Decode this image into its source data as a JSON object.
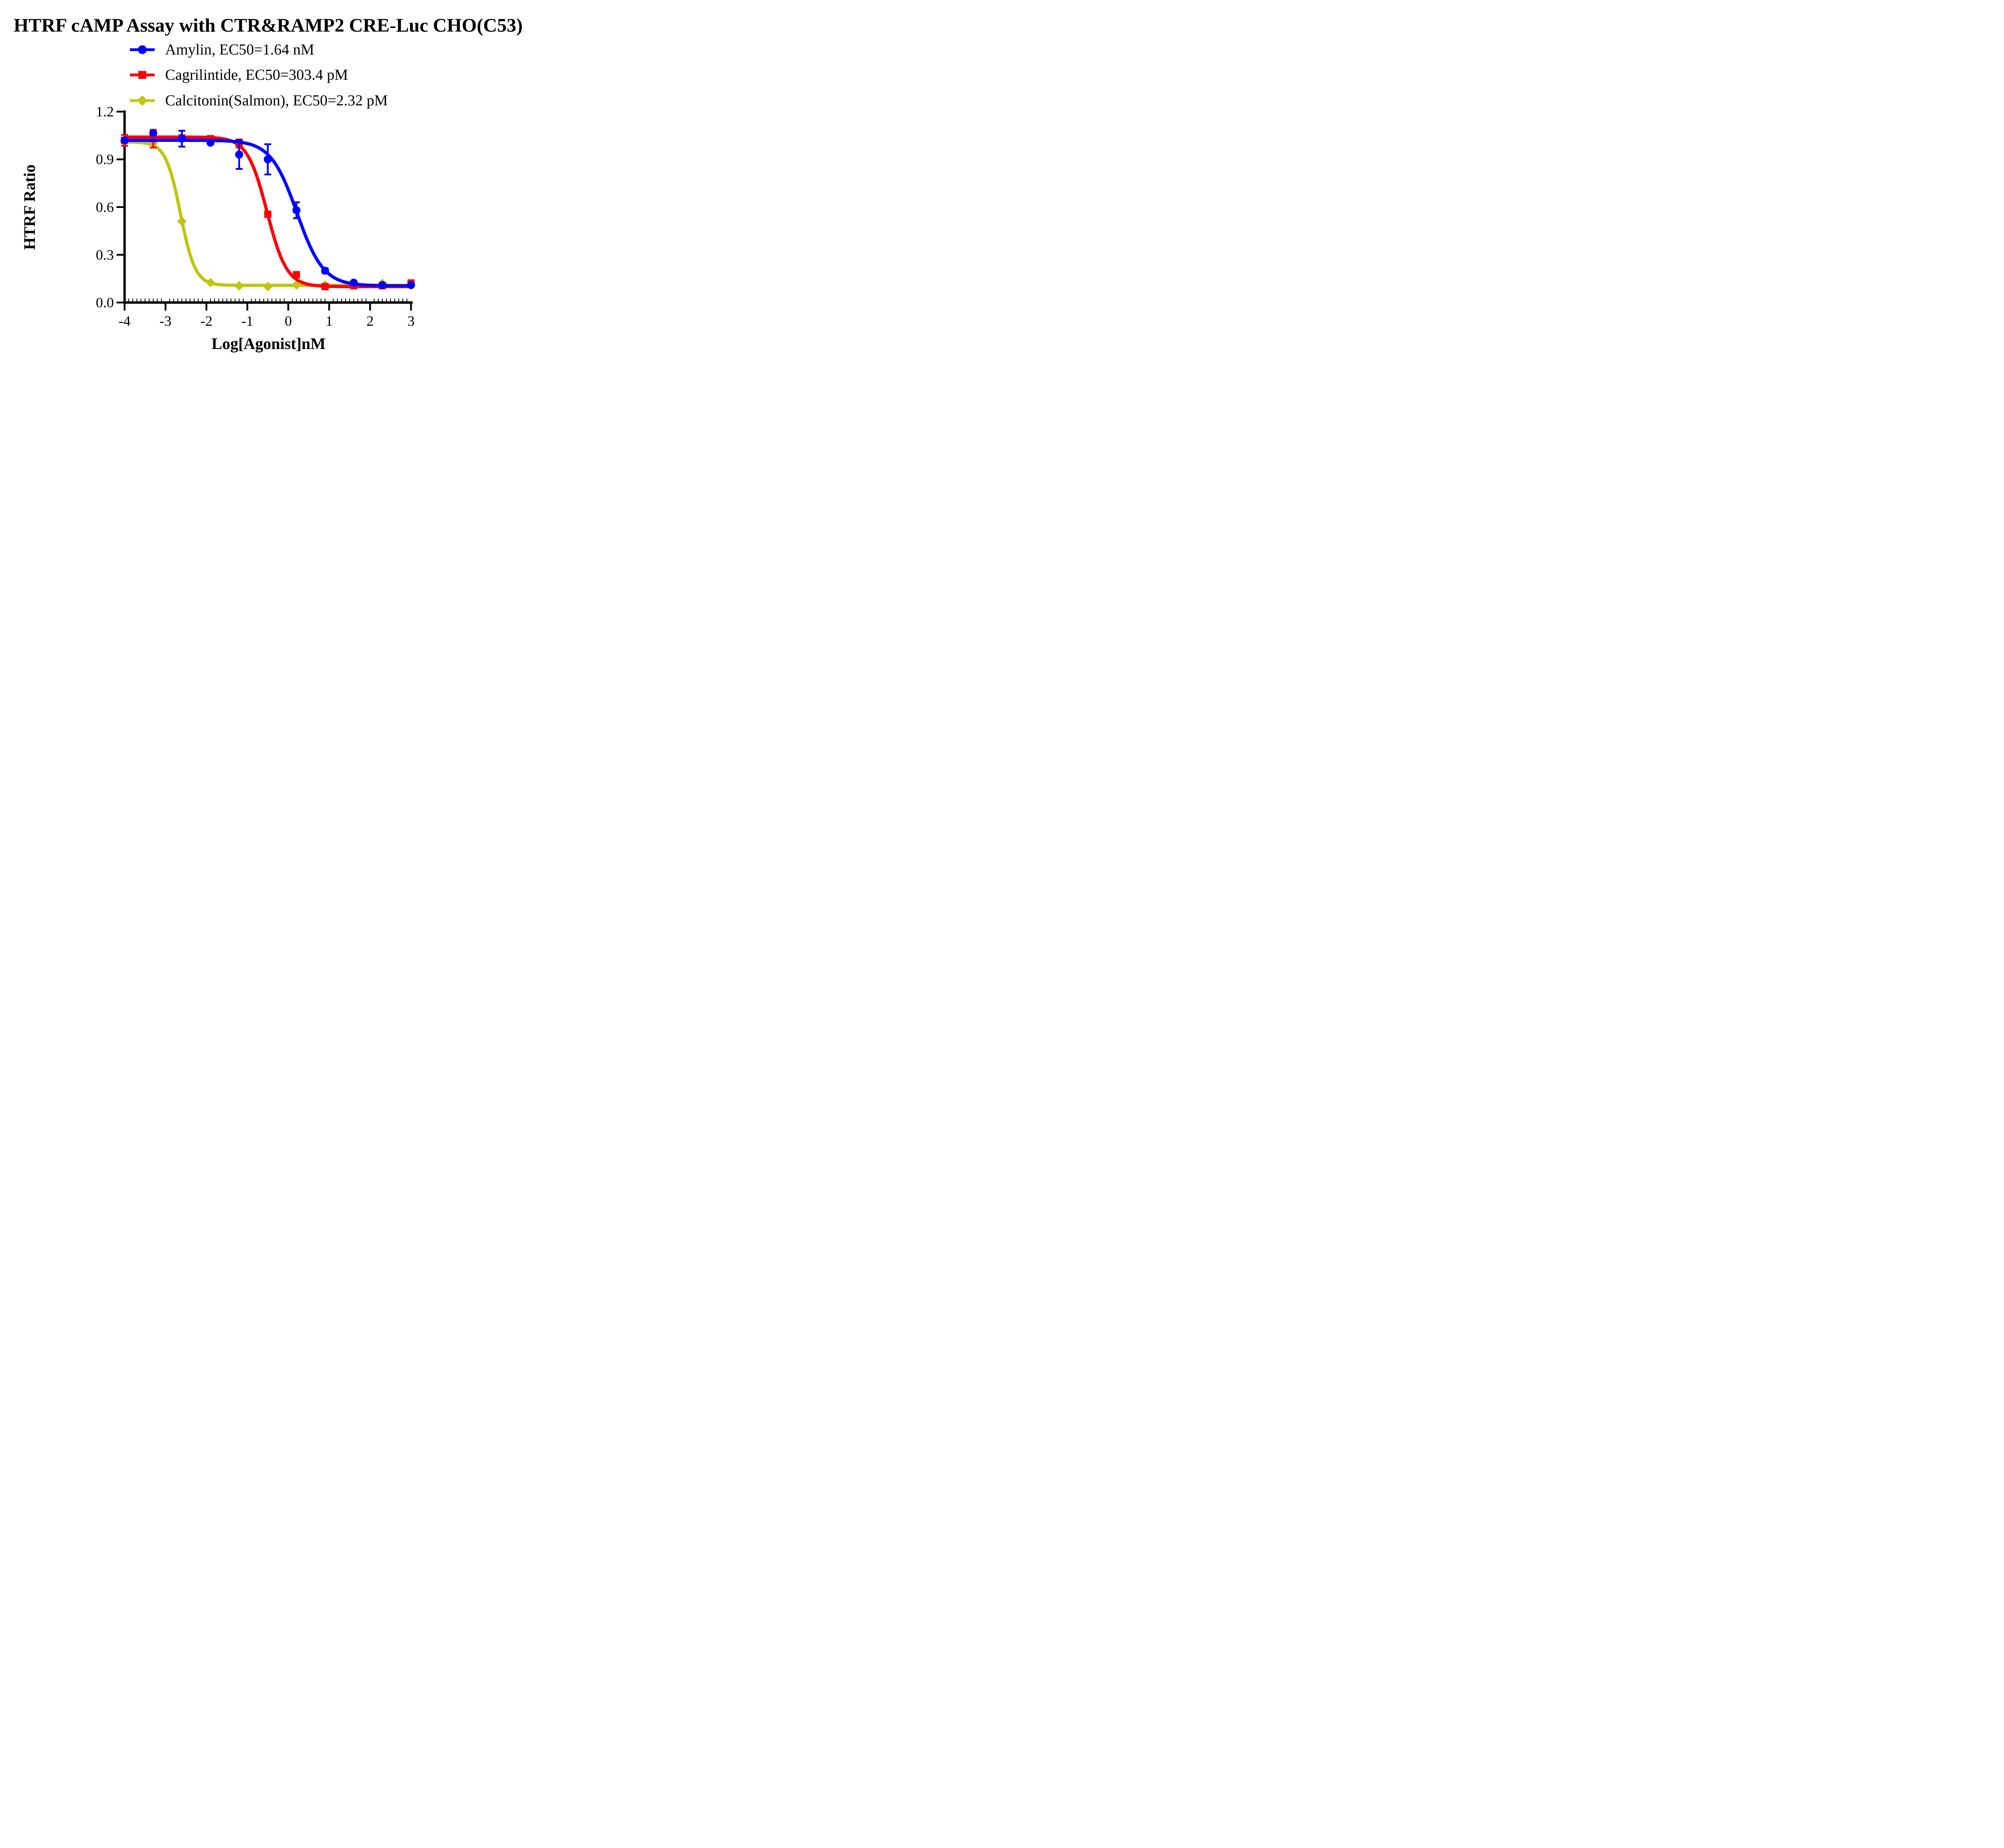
{
  "title": "HTRF cAMP Assay with CTR&RAMP2 CRE-Luc CHO(C53)",
  "background_color": "#FFFFFF",
  "axis_color": "#000000",
  "legend": [
    {
      "label": "Amylin,  EC50=1.64 nM",
      "marker": "circle",
      "color": "#0000FE"
    },
    {
      "label": "Cagrilintide,  EC50=303.4 pM",
      "marker": "square",
      "color": "#FB0105"
    },
    {
      "label": "Calcitonin(Salmon),  EC50=2.32 pM",
      "marker": "diamond",
      "color": "#C2C40D"
    }
  ],
  "chart_data": {
    "type": "line",
    "title": "HTRF cAMP Assay with CTR&RAMP2 CRE-Luc CHO(C53)",
    "xlabel": "Log[Agonist]nM",
    "ylabel": "HTRF Ratio",
    "xlim": [
      -4,
      3
    ],
    "ylim": [
      0,
      1.2
    ],
    "grid": false,
    "legend_position": "top-left",
    "xticks": [
      -4,
      -3,
      -2,
      -1,
      0,
      1,
      2,
      3
    ],
    "xtick_labels": [
      "-4",
      "-3",
      "-2",
      "-1",
      "0",
      "1",
      "2",
      "3"
    ],
    "yticks": [
      0.0,
      0.3,
      0.6,
      0.9,
      1.2
    ],
    "ytick_labels": [
      "0.0",
      "0.3",
      "0.6",
      "0.9",
      "1.2"
    ],
    "minor_tick_step": 0.1,
    "x": [
      -4,
      -3.3,
      -2.6,
      -1.9,
      -1.2,
      -0.5,
      0.2,
      0.9,
      1.6,
      2.3,
      3
    ],
    "series": [
      {
        "name": "Amylin",
        "ec50": "1.64 nM",
        "marker": "circle",
        "color": "#0000FE",
        "values": [
          1.02,
          1.065,
          1.03,
          1.005,
          0.93,
          0.9,
          0.58,
          0.2,
          0.125,
          0.11,
          0.11
        ],
        "errors": [
          0,
          0,
          0.05,
          0,
          0.09,
          0.095,
          0.05,
          0.015,
          0,
          0,
          0
        ],
        "fit": {
          "top": 1.02,
          "bottom": 0.105,
          "logec50": 0.215,
          "hill": 1.35
        }
      },
      {
        "name": "Cagrilintide",
        "ec50": "303.4 pM",
        "marker": "square",
        "color": "#FB0105",
        "values": [
          1.02,
          1.03,
          1.035,
          1.03,
          1.0,
          0.555,
          0.175,
          0.1,
          0.105,
          0.105,
          0.12
        ],
        "errors": [
          0.034,
          0.056,
          0,
          0,
          0.025,
          0,
          0,
          0,
          0,
          0,
          0.02
        ],
        "fit": {
          "top": 1.04,
          "bottom": 0.1,
          "logec50": -0.518,
          "hill": 1.8
        }
      },
      {
        "name": "Calcitonin(Salmon)",
        "ec50": "2.32 pM",
        "marker": "diamond",
        "color": "#C2C40D",
        "values": [
          1.01,
          1.0,
          0.51,
          0.125,
          0.105,
          0.1,
          0.11,
          0.11,
          0.11,
          0.12,
          0.11
        ],
        "errors": [
          0,
          0,
          0,
          0,
          0,
          0,
          0,
          0,
          0,
          0,
          0
        ],
        "fit": {
          "top": 1.01,
          "bottom": 0.108,
          "logec50": -2.634,
          "hill": 2.4
        }
      }
    ]
  }
}
